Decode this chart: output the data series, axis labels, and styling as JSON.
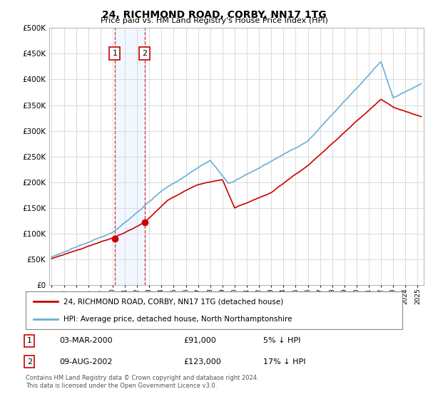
{
  "title": "24, RICHMOND ROAD, CORBY, NN17 1TG",
  "subtitle": "Price paid vs. HM Land Registry's House Price Index (HPI)",
  "ytick_values": [
    0,
    50000,
    100000,
    150000,
    200000,
    250000,
    300000,
    350000,
    400000,
    450000,
    500000
  ],
  "xlim_start": 1994.8,
  "xlim_end": 2025.5,
  "ylim": [
    0,
    500000
  ],
  "hpi_color": "#6baed6",
  "price_color": "#cc0000",
  "sale1_date": 2000.17,
  "sale1_price": 91000,
  "sale2_date": 2002.61,
  "sale2_price": 123000,
  "legend_label1": "24, RICHMOND ROAD, CORBY, NN17 1TG (detached house)",
  "legend_label2": "HPI: Average price, detached house, North Northamptonshire",
  "footnote": "Contains HM Land Registry data © Crown copyright and database right 2024.\nThis data is licensed under the Open Government Licence v3.0.",
  "background_color": "#ffffff",
  "grid_color": "#cccccc",
  "highlight_color": "#ddeeff",
  "label1_box": "1",
  "label2_box": "2",
  "row1_date": "03-MAR-2000",
  "row1_price": "£91,000",
  "row1_hpi": "5% ↓ HPI",
  "row2_date": "09-AUG-2002",
  "row2_price": "£123,000",
  "row2_hpi": "17% ↓ HPI"
}
